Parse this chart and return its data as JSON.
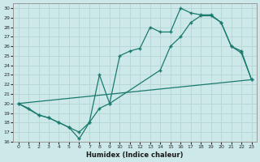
{
  "xlabel": "Humidex (Indice chaleur)",
  "ylabel": "",
  "xlim": [
    -0.5,
    23.5
  ],
  "ylim": [
    16,
    30.5
  ],
  "yticks": [
    16,
    17,
    18,
    19,
    20,
    21,
    22,
    23,
    24,
    25,
    26,
    27,
    28,
    29,
    30
  ],
  "xticks": [
    0,
    1,
    2,
    3,
    4,
    5,
    6,
    7,
    8,
    9,
    10,
    11,
    12,
    13,
    14,
    15,
    16,
    17,
    18,
    19,
    20,
    21,
    22,
    23
  ],
  "bg_color": "#cce8e8",
  "line_color": "#1a7a6e",
  "grid_color": "#b8d8d8",
  "line1_x": [
    0,
    1,
    2,
    3,
    4,
    5,
    6,
    7,
    8,
    9,
    10,
    11,
    12,
    13,
    14,
    15,
    16,
    17,
    18,
    19,
    20,
    21,
    22,
    23
  ],
  "line1_y": [
    20.0,
    19.5,
    18.8,
    18.5,
    18.0,
    17.5,
    17.0,
    18.0,
    19.5,
    20.0,
    25.0,
    25.5,
    25.8,
    28.0,
    27.5,
    27.5,
    30.0,
    29.5,
    29.3,
    29.3,
    28.5,
    26.0,
    25.3,
    22.5
  ],
  "line2_x": [
    0,
    23
  ],
  "line2_y": [
    20.0,
    22.5
  ],
  "line3_x": [
    0,
    2,
    3,
    4,
    5,
    6,
    7,
    8,
    9,
    14,
    15,
    16,
    17,
    18,
    19,
    20,
    21,
    22,
    23
  ],
  "line3_y": [
    20.0,
    18.8,
    18.5,
    18.0,
    17.5,
    16.3,
    18.0,
    23.0,
    20.0,
    23.5,
    26.0,
    27.0,
    28.5,
    29.2,
    29.2,
    28.5,
    26.0,
    25.5,
    22.5
  ]
}
